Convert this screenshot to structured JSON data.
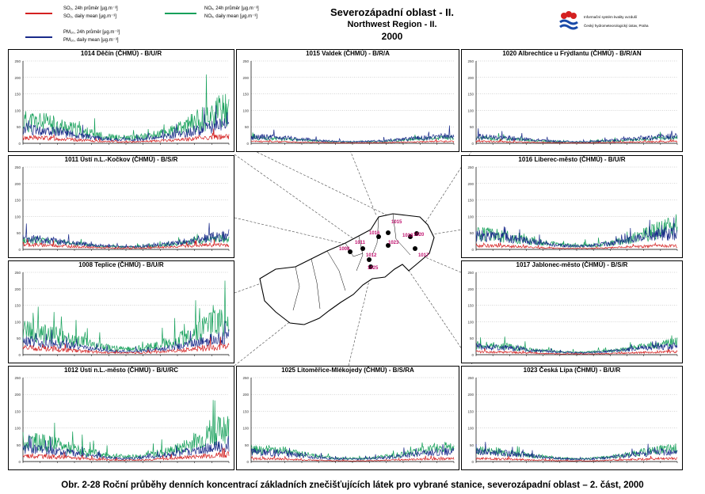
{
  "header": {
    "title_cz": "Severozápadní oblast - II.",
    "title_en": "Northwest Region - II.",
    "year": "2000"
  },
  "legend": [
    {
      "line1": "SO₂, 24h průměr [µg.m⁻³]",
      "line2": "SO₂, daily mean [µg.m⁻³]",
      "color": "#d42020"
    },
    {
      "line1": "PM₁₀, 24h průměr [µg.m⁻³]",
      "line2": "PM₁₀, daily mean [µg.m⁻³]",
      "color": "#1a2a8a"
    },
    {
      "line1": "NOₓ, 24h průměr [µg.m⁻³]",
      "line2": "NOₓ, daily mean [µg.m⁻³]",
      "color": "#16a05a"
    }
  ],
  "logo": {
    "line1": "Informační systém kvality ovzduší",
    "line2": "Český hydrometeorologický ústav, Praha"
  },
  "caption": "Obr. 2-28  Roční průběhy denních koncentrací základních znečišťujících látek pro vybrané stanice, severozápadní oblast – 2. část, 2000",
  "colors": {
    "so2": "#d42020",
    "pm10": "#1a2a8a",
    "nox": "#16a05a"
  },
  "chart_data": [
    {
      "type": "line",
      "title": "1014 Děčín (ČHMÚ)  -  B/U/R",
      "ylim": [
        0,
        250
      ],
      "yticks": [
        0,
        50,
        100,
        150,
        200,
        250
      ],
      "series": [
        {
          "key": "nox",
          "level": 40,
          "amp": 55,
          "end_rise": 1.6,
          "seed": 11
        },
        {
          "key": "pm10",
          "level": 30,
          "amp": 30,
          "end_rise": 1.3,
          "seed": 12
        },
        {
          "key": "so2",
          "level": 12,
          "amp": 12,
          "end_rise": 1.2,
          "seed": 13
        }
      ]
    },
    {
      "type": "line",
      "title": "1015 Valdek (ČHMÚ)  -  B/R/A",
      "ylim": [
        0,
        250
      ],
      "yticks": [
        0,
        50,
        100,
        150,
        200,
        250
      ],
      "series": [
        {
          "key": "nox",
          "level": 12,
          "amp": 10,
          "end_rise": 1.1,
          "seed": 21
        },
        {
          "key": "pm10",
          "level": 14,
          "amp": 14,
          "end_rise": 1.1,
          "seed": 22
        },
        {
          "key": "so2",
          "level": 4,
          "amp": 4,
          "end_rise": 1,
          "seed": 23
        }
      ]
    },
    {
      "type": "line",
      "title": "1020 Albrechtice u Frýdlantu (ČHMÚ)  -  B/R/AN",
      "ylim": [
        0,
        250
      ],
      "yticks": [
        0,
        50,
        100,
        150,
        200,
        250
      ],
      "series": [
        {
          "key": "nox",
          "level": 12,
          "amp": 10,
          "end_rise": 1.1,
          "seed": 31
        },
        {
          "key": "pm10",
          "level": 14,
          "amp": 14,
          "end_rise": 1.1,
          "seed": 32
        },
        {
          "key": "so2",
          "level": 4,
          "amp": 4,
          "end_rise": 1,
          "seed": 33
        }
      ]
    },
    {
      "type": "line",
      "title": "1011 Ústí n.L.-Kočkov (ČHMÚ)  -  B/S/R",
      "ylim": [
        0,
        250
      ],
      "yticks": [
        0,
        50,
        100,
        150,
        200,
        250
      ],
      "series": [
        {
          "key": "nox",
          "level": 22,
          "amp": 18,
          "end_rise": 1.2,
          "seed": 41
        },
        {
          "key": "pm10",
          "level": 22,
          "amp": 22,
          "end_rise": 1.4,
          "seed": 42
        },
        {
          "key": "so2",
          "level": 10,
          "amp": 10,
          "end_rise": 1,
          "seed": 43
        }
      ]
    },
    {
      "type": "line",
      "title": "1016 Liberec-město (ČHMÚ)  -  B/U/R",
      "ylim": [
        0,
        250
      ],
      "yticks": [
        0,
        50,
        100,
        150,
        200,
        250
      ],
      "series": [
        {
          "key": "nox",
          "level": 30,
          "amp": 35,
          "end_rise": 1.6,
          "seed": 51
        },
        {
          "key": "pm10",
          "level": 30,
          "amp": 28,
          "end_rise": 1.2,
          "seed": 52
        },
        {
          "key": "so2",
          "level": 8,
          "amp": 8,
          "end_rise": 1,
          "seed": 53
        }
      ]
    },
    {
      "type": "line",
      "title": "1008 Teplice (ČHMÚ)  -  B/U/R",
      "ylim": [
        0,
        250
      ],
      "yticks": [
        0,
        50,
        100,
        150,
        200,
        250
      ],
      "series": [
        {
          "key": "nox",
          "level": 45,
          "amp": 55,
          "end_rise": 1.5,
          "seed": 61
        },
        {
          "key": "pm10",
          "level": 30,
          "amp": 26,
          "end_rise": 1.3,
          "seed": 62
        },
        {
          "key": "so2",
          "level": 14,
          "amp": 14,
          "end_rise": 1.2,
          "seed": 63
        }
      ]
    },
    {
      "type": "line",
      "title": "1017 Jablonec-město (ČHMÚ)  -  B/S/R",
      "ylim": [
        0,
        250
      ],
      "yticks": [
        0,
        50,
        100,
        150,
        200,
        250
      ],
      "series": [
        {
          "key": "nox",
          "level": 22,
          "amp": 18,
          "end_rise": 1.3,
          "seed": 71
        },
        {
          "key": "pm10",
          "level": 18,
          "amp": 16,
          "end_rise": 1.1,
          "seed": 72
        },
        {
          "key": "so2",
          "level": 6,
          "amp": 6,
          "end_rise": 1,
          "seed": 73
        }
      ]
    },
    {
      "type": "line",
      "title": "1012 Ústí n.L.-město (ČHMÚ)  -  B/U/RC",
      "ylim": [
        0,
        250
      ],
      "yticks": [
        0,
        50,
        100,
        150,
        200,
        250
      ],
      "series": [
        {
          "key": "nox",
          "level": 40,
          "amp": 45,
          "end_rise": 1.7,
          "seed": 81
        },
        {
          "key": "pm10",
          "level": 28,
          "amp": 24,
          "end_rise": 1.3,
          "seed": 82
        },
        {
          "key": "so2",
          "level": 12,
          "amp": 12,
          "end_rise": 1.2,
          "seed": 83
        }
      ]
    },
    {
      "type": "line",
      "title": "1025 Litoměřice-Mlékojedy (ČHMÚ)  -  B/S/RA",
      "ylim": [
        0,
        250
      ],
      "yticks": [
        0,
        50,
        100,
        150,
        200,
        250
      ],
      "series": [
        {
          "key": "nox",
          "level": 28,
          "amp": 22,
          "end_rise": 1.3,
          "seed": 91
        },
        {
          "key": "pm10",
          "level": 22,
          "amp": 18,
          "end_rise": 1.1,
          "seed": 92
        },
        {
          "key": "so2",
          "level": 6,
          "amp": 6,
          "end_rise": 1,
          "seed": 93
        }
      ]
    },
    {
      "type": "line",
      "title": "1023 Česká Lípa (ČHMÚ)  -  B/U/R",
      "ylim": [
        0,
        250
      ],
      "yticks": [
        0,
        50,
        100,
        150,
        200,
        250
      ],
      "series": [
        {
          "key": "nox",
          "level": 26,
          "amp": 20,
          "end_rise": 1.2,
          "seed": 101
        },
        {
          "key": "pm10",
          "level": 22,
          "amp": 18,
          "end_rise": 1.1,
          "seed": 102
        },
        {
          "key": "so2",
          "level": 6,
          "amp": 6,
          "end_rise": 1,
          "seed": 103
        }
      ]
    }
  ],
  "map_labels": [
    "1015",
    "1016",
    "1011",
    "1008",
    "1012",
    "1023",
    "1018",
    "1020",
    "1017",
    "1025"
  ]
}
